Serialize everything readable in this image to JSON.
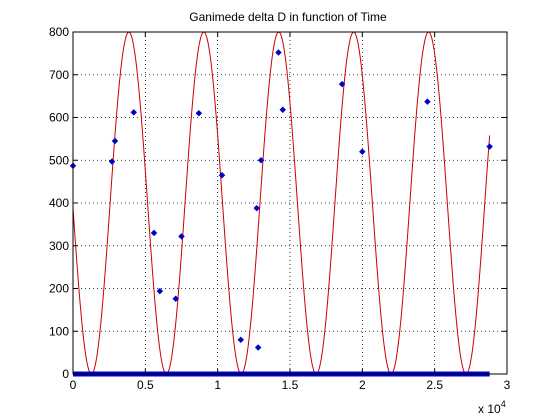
{
  "chart_data": {
    "type": "scatter",
    "title": "Ganimede delta D in function of Time",
    "xlabel": "",
    "ylabel": "",
    "xlim": [
      0,
      30000
    ],
    "ylim": [
      0,
      800
    ],
    "x_ticks": [
      0,
      5000,
      10000,
      15000,
      20000,
      25000,
      30000
    ],
    "x_tick_labels": [
      "0",
      "0.5",
      "1",
      "1.5",
      "2",
      "2.5",
      "3"
    ],
    "x_multiplier_label": "x 10",
    "x_multiplier_exponent": "4",
    "y_ticks": [
      0,
      100,
      200,
      300,
      400,
      500,
      600,
      700,
      800
    ],
    "y_tick_labels": [
      "0",
      "100",
      "200",
      "300",
      "400",
      "500",
      "600",
      "700",
      "800"
    ],
    "grid": true,
    "grid_style": "dotted",
    "series": [
      {
        "kind": "points",
        "color": "#0000cc",
        "points": [
          [
            0,
            487
          ],
          [
            2700,
            497
          ],
          [
            2900,
            545
          ],
          [
            4200,
            612
          ],
          [
            5600,
            330
          ],
          [
            6000,
            194
          ],
          [
            7100,
            176
          ],
          [
            7500,
            322
          ],
          [
            8700,
            610
          ],
          [
            10300,
            465
          ],
          [
            11600,
            80
          ],
          [
            12700,
            388
          ],
          [
            12800,
            62
          ],
          [
            13000,
            500
          ],
          [
            14200,
            752
          ],
          [
            14500,
            618
          ],
          [
            18600,
            678
          ],
          [
            20000,
            520
          ],
          [
            24500,
            637
          ],
          [
            28800,
            532
          ]
        ]
      },
      {
        "kind": "baseline-points",
        "color": "#0000cc",
        "x_start": 0,
        "x_end": 28800,
        "y": 0
      },
      {
        "kind": "curve",
        "color": "#cc0000",
        "formula": "400 + 400*cos(2*pi*(t - 3860)/5180)",
        "period": 5180,
        "peak_t": 3860,
        "mean": 400,
        "amplitude": 400,
        "t_start": 0,
        "t_end": 28800
      }
    ]
  }
}
